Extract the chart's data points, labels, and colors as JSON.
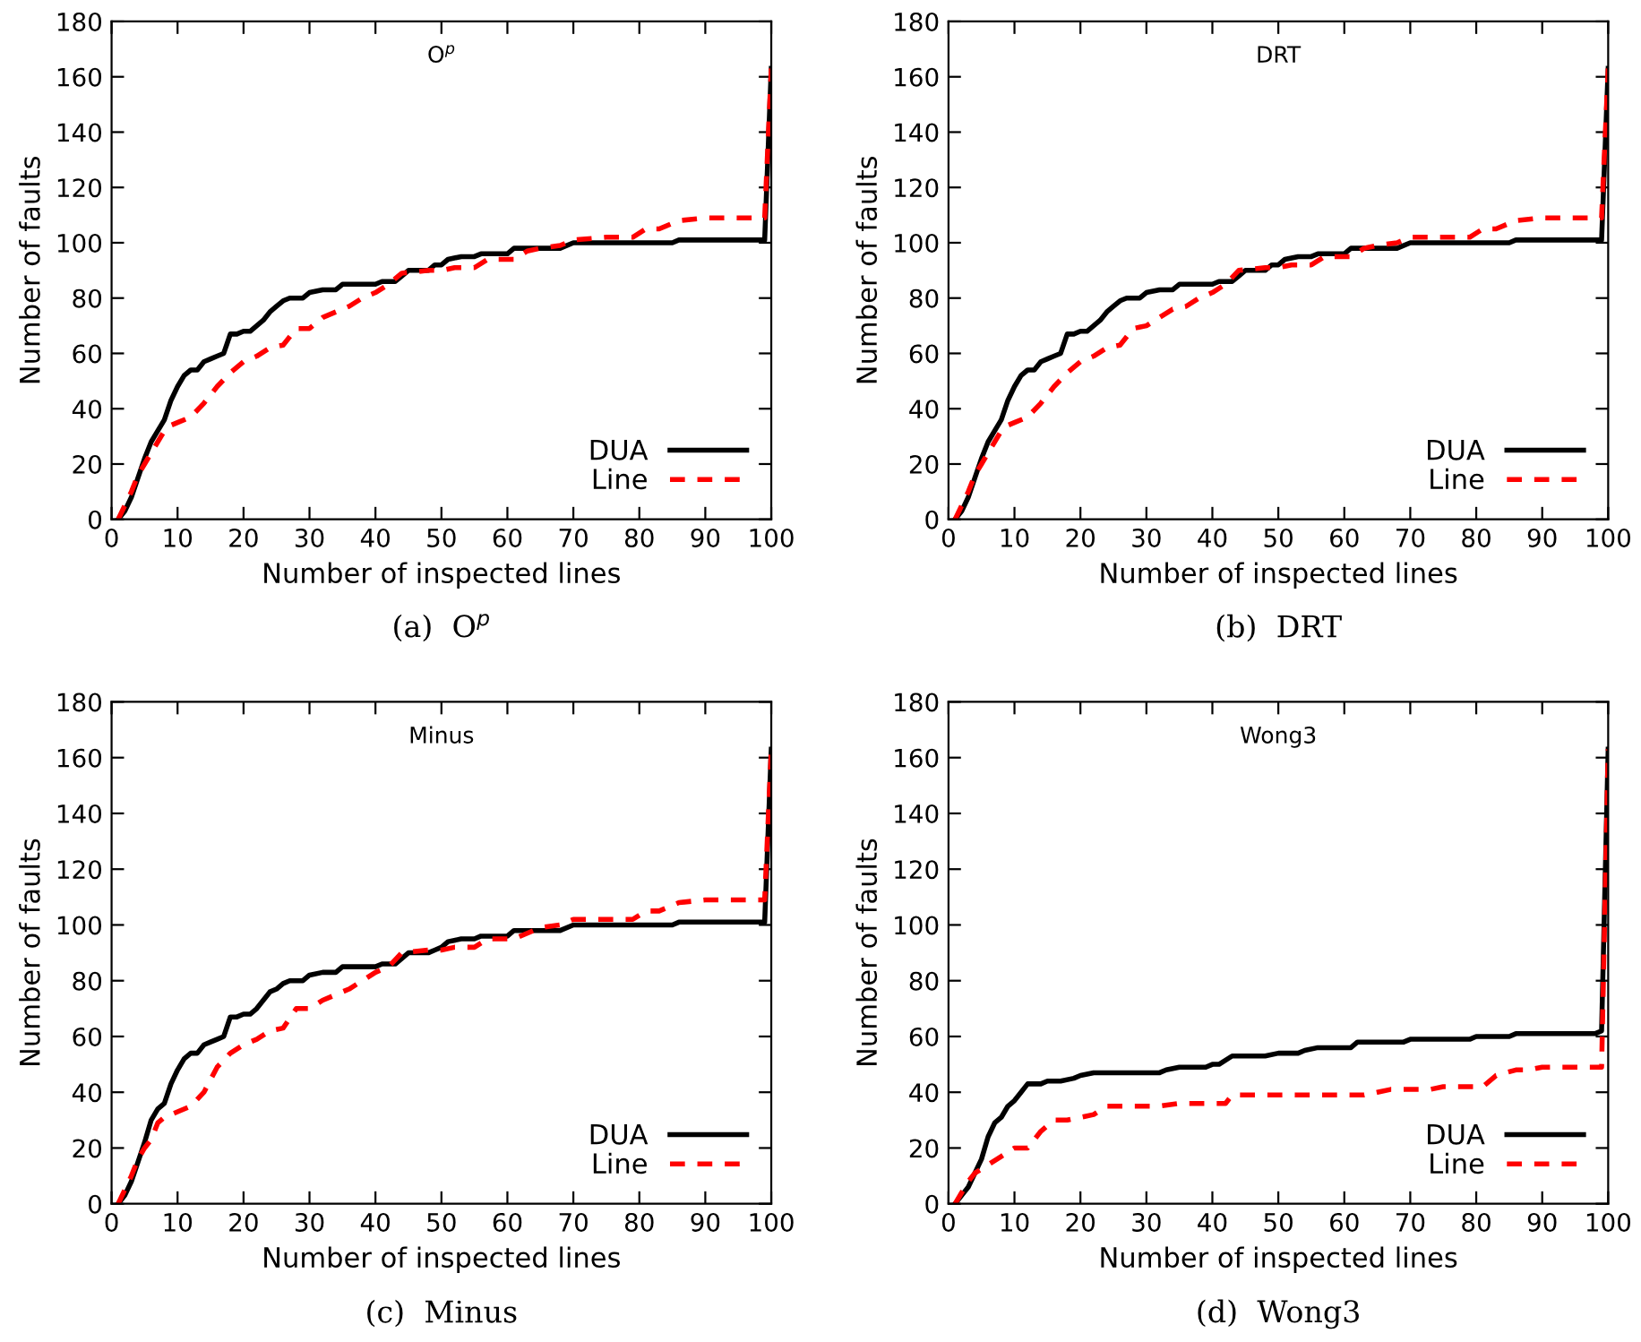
{
  "chart_data": [
    {
      "type": "line",
      "title": "O$^{p}$",
      "xlabel": "Number of inspected lines",
      "ylabel": "Number of faults",
      "xlim": [
        0,
        100
      ],
      "ylim": [
        0,
        180
      ],
      "xticks": [
        0,
        10,
        20,
        30,
        40,
        50,
        60,
        70,
        80,
        90,
        100
      ],
      "yticks": [
        0,
        20,
        40,
        60,
        80,
        100,
        120,
        140,
        160,
        180
      ],
      "legend": "bottom right",
      "annotations": [
        "(a)  O$^{p}$"
      ],
      "series": [
        {
          "name": "DUA",
          "color": "#000000",
          "line_style": "solid",
          "x": [
            1,
            2,
            3,
            4,
            5,
            6,
            7,
            8,
            9,
            10,
            11,
            12,
            13,
            14,
            15,
            16,
            17,
            18,
            19,
            20,
            21,
            22,
            23,
            24,
            25,
            26,
            27,
            29,
            30,
            32,
            34,
            35,
            40,
            41,
            43,
            44,
            45,
            48,
            49,
            50,
            51,
            53,
            55,
            56,
            60,
            61,
            68,
            70,
            85,
            86,
            99,
            100
          ],
          "values": [
            0,
            3,
            8,
            15,
            22,
            28,
            32,
            36,
            43,
            48,
            52,
            54,
            54,
            57,
            58,
            59,
            60,
            67,
            67,
            68,
            68,
            70,
            72,
            75,
            77,
            79,
            80,
            80,
            82,
            83,
            83,
            85,
            85,
            86,
            86,
            88,
            90,
            90,
            92,
            92,
            94,
            95,
            95,
            96,
            96,
            98,
            98,
            100,
            100,
            101,
            101,
            163
          ]
        },
        {
          "name": "Line",
          "color": "#ff0000",
          "line_style": "dashed",
          "x": [
            1,
            2,
            3,
            4,
            5,
            6,
            7,
            8,
            9,
            10,
            12,
            14,
            16,
            18,
            20,
            22,
            24,
            26,
            28,
            30,
            32,
            34,
            36,
            38,
            40,
            42,
            44,
            48,
            50,
            52,
            55,
            57,
            61,
            63,
            65,
            68,
            70,
            75,
            79,
            81,
            83,
            86,
            90,
            99,
            100
          ],
          "values": [
            0,
            5,
            10,
            16,
            20,
            24,
            28,
            32,
            34,
            35,
            37,
            42,
            48,
            53,
            57,
            59,
            62,
            63,
            69,
            69,
            73,
            75,
            77,
            80,
            82,
            85,
            89,
            90,
            90,
            91,
            91,
            94,
            94,
            97,
            98,
            99,
            101,
            102,
            102,
            105,
            105,
            108,
            109,
            109,
            163
          ]
        }
      ]
    },
    {
      "type": "line",
      "title": "DRT",
      "xlabel": "Number of inspected lines",
      "ylabel": "Number of faults",
      "xlim": [
        0,
        100
      ],
      "ylim": [
        0,
        180
      ],
      "xticks": [
        0,
        10,
        20,
        30,
        40,
        50,
        60,
        70,
        80,
        90,
        100
      ],
      "yticks": [
        0,
        20,
        40,
        60,
        80,
        100,
        120,
        140,
        160,
        180
      ],
      "legend": "bottom right",
      "annotations": [
        "(b)  DRT"
      ],
      "series": [
        {
          "name": "DUA",
          "color": "#000000",
          "line_style": "solid",
          "x": [
            1,
            2,
            3,
            4,
            5,
            6,
            7,
            8,
            9,
            10,
            11,
            12,
            13,
            14,
            15,
            16,
            17,
            18,
            19,
            20,
            21,
            22,
            23,
            24,
            25,
            26,
            27,
            29,
            30,
            32,
            34,
            35,
            40,
            41,
            43,
            44,
            45,
            48,
            49,
            50,
            51,
            53,
            55,
            56,
            60,
            61,
            68,
            70,
            85,
            86,
            99,
            100
          ],
          "values": [
            0,
            3,
            8,
            15,
            22,
            28,
            32,
            36,
            43,
            48,
            52,
            54,
            54,
            57,
            58,
            59,
            60,
            67,
            67,
            68,
            68,
            70,
            72,
            75,
            77,
            79,
            80,
            80,
            82,
            83,
            83,
            85,
            85,
            86,
            86,
            88,
            90,
            90,
            92,
            92,
            94,
            95,
            95,
            96,
            96,
            98,
            98,
            100,
            100,
            101,
            101,
            163
          ]
        },
        {
          "name": "Line",
          "color": "#ff0000",
          "line_style": "dashed",
          "x": [
            1,
            2,
            3,
            4,
            5,
            6,
            7,
            8,
            9,
            10,
            12,
            14,
            16,
            18,
            20,
            22,
            24,
            26,
            28,
            30,
            32,
            34,
            36,
            38,
            40,
            42,
            44,
            48,
            50,
            52,
            55,
            57,
            61,
            63,
            65,
            68,
            70,
            75,
            79,
            81,
            83,
            86,
            90,
            99,
            100
          ],
          "values": [
            0,
            5,
            10,
            16,
            20,
            24,
            28,
            32,
            34,
            35,
            37,
            42,
            48,
            53,
            57,
            59,
            62,
            63,
            69,
            70,
            73,
            76,
            77,
            80,
            82,
            85,
            90,
            91,
            91,
            92,
            92,
            95,
            95,
            98,
            99,
            100,
            102,
            102,
            102,
            105,
            105,
            108,
            109,
            109,
            163
          ]
        }
      ]
    },
    {
      "type": "line",
      "title": "Minus",
      "xlabel": "Number of inspected lines",
      "ylabel": "Number of faults",
      "xlim": [
        0,
        100
      ],
      "ylim": [
        0,
        180
      ],
      "xticks": [
        0,
        10,
        20,
        30,
        40,
        50,
        60,
        70,
        80,
        90,
        100
      ],
      "yticks": [
        0,
        20,
        40,
        60,
        80,
        100,
        120,
        140,
        160,
        180
      ],
      "legend": "bottom right",
      "annotations": [
        "(c)  Minus"
      ],
      "series": [
        {
          "name": "DUA",
          "color": "#000000",
          "line_style": "solid",
          "x": [
            1,
            2,
            3,
            4,
            5,
            6,
            7,
            8,
            9,
            10,
            11,
            12,
            13,
            14,
            15,
            16,
            17,
            18,
            19,
            20,
            21,
            22,
            23,
            24,
            25,
            26,
            27,
            29,
            30,
            32,
            34,
            35,
            40,
            41,
            43,
            44,
            45,
            48,
            49,
            50,
            51,
            53,
            55,
            56,
            60,
            61,
            68,
            70,
            85,
            86,
            99,
            100
          ],
          "values": [
            0,
            3,
            8,
            15,
            22,
            30,
            34,
            36,
            43,
            48,
            52,
            54,
            54,
            57,
            58,
            59,
            60,
            67,
            67,
            68,
            68,
            70,
            73,
            76,
            77,
            79,
            80,
            80,
            82,
            83,
            83,
            85,
            85,
            86,
            86,
            88,
            90,
            90,
            91,
            92,
            94,
            95,
            95,
            96,
            96,
            98,
            98,
            100,
            100,
            101,
            101,
            163
          ]
        },
        {
          "name": "Line",
          "color": "#ff0000",
          "line_style": "dashed",
          "x": [
            1,
            2,
            3,
            4,
            5,
            6,
            7,
            8,
            9,
            10,
            12,
            14,
            16,
            18,
            20,
            22,
            24,
            26,
            28,
            30,
            32,
            34,
            36,
            38,
            40,
            42,
            44,
            48,
            50,
            52,
            55,
            57,
            61,
            63,
            65,
            68,
            70,
            75,
            79,
            81,
            83,
            86,
            90,
            99,
            100
          ],
          "values": [
            0,
            5,
            10,
            16,
            20,
            23,
            29,
            31,
            32,
            33,
            35,
            40,
            49,
            54,
            57,
            59,
            62,
            63,
            70,
            70,
            73,
            75,
            77,
            80,
            83,
            85,
            90,
            91,
            91,
            92,
            92,
            95,
            95,
            97,
            99,
            100,
            102,
            102,
            102,
            105,
            105,
            108,
            109,
            109,
            163
          ]
        }
      ]
    },
    {
      "type": "line",
      "title": "Wong3",
      "xlabel": "Number of inspected lines",
      "ylabel": "Number of faults",
      "xlim": [
        0,
        100
      ],
      "ylim": [
        0,
        180
      ],
      "xticks": [
        0,
        10,
        20,
        30,
        40,
        50,
        60,
        70,
        80,
        90,
        100
      ],
      "yticks": [
        0,
        20,
        40,
        60,
        80,
        100,
        120,
        140,
        160,
        180
      ],
      "legend": "bottom right",
      "annotations": [
        "(d)  Wong3"
      ],
      "series": [
        {
          "name": "DUA",
          "color": "#000000",
          "line_style": "solid",
          "x": [
            1,
            2,
            3,
            4,
            5,
            6,
            7,
            8,
            9,
            10,
            11,
            12,
            14,
            15,
            17,
            19,
            20,
            22,
            32,
            33,
            35,
            39,
            40,
            41,
            43,
            48,
            50,
            53,
            54,
            56,
            61,
            62,
            69,
            70,
            79,
            80,
            85,
            86,
            98,
            99,
            100
          ],
          "values": [
            0,
            3,
            6,
            11,
            16,
            24,
            29,
            31,
            35,
            37,
            40,
            43,
            43,
            44,
            44,
            45,
            46,
            47,
            47,
            48,
            49,
            49,
            50,
            50,
            53,
            53,
            54,
            54,
            55,
            56,
            56,
            58,
            58,
            59,
            59,
            60,
            60,
            61,
            61,
            62,
            163
          ]
        },
        {
          "name": "Line",
          "color": "#ff0000",
          "line_style": "dashed",
          "x": [
            1,
            2,
            3,
            4,
            6,
            8,
            10,
            12,
            14,
            16,
            18,
            20,
            22,
            24,
            32,
            35,
            42,
            43,
            63,
            65,
            67,
            73,
            75,
            81,
            83,
            86,
            88,
            90,
            98,
            99,
            100
          ],
          "values": [
            0,
            4,
            8,
            11,
            14,
            17,
            20,
            20,
            26,
            30,
            30,
            31,
            32,
            35,
            35,
            36,
            36,
            39,
            39,
            40,
            41,
            41,
            42,
            42,
            46,
            48,
            48,
            49,
            49,
            49,
            163
          ]
        }
      ]
    }
  ]
}
